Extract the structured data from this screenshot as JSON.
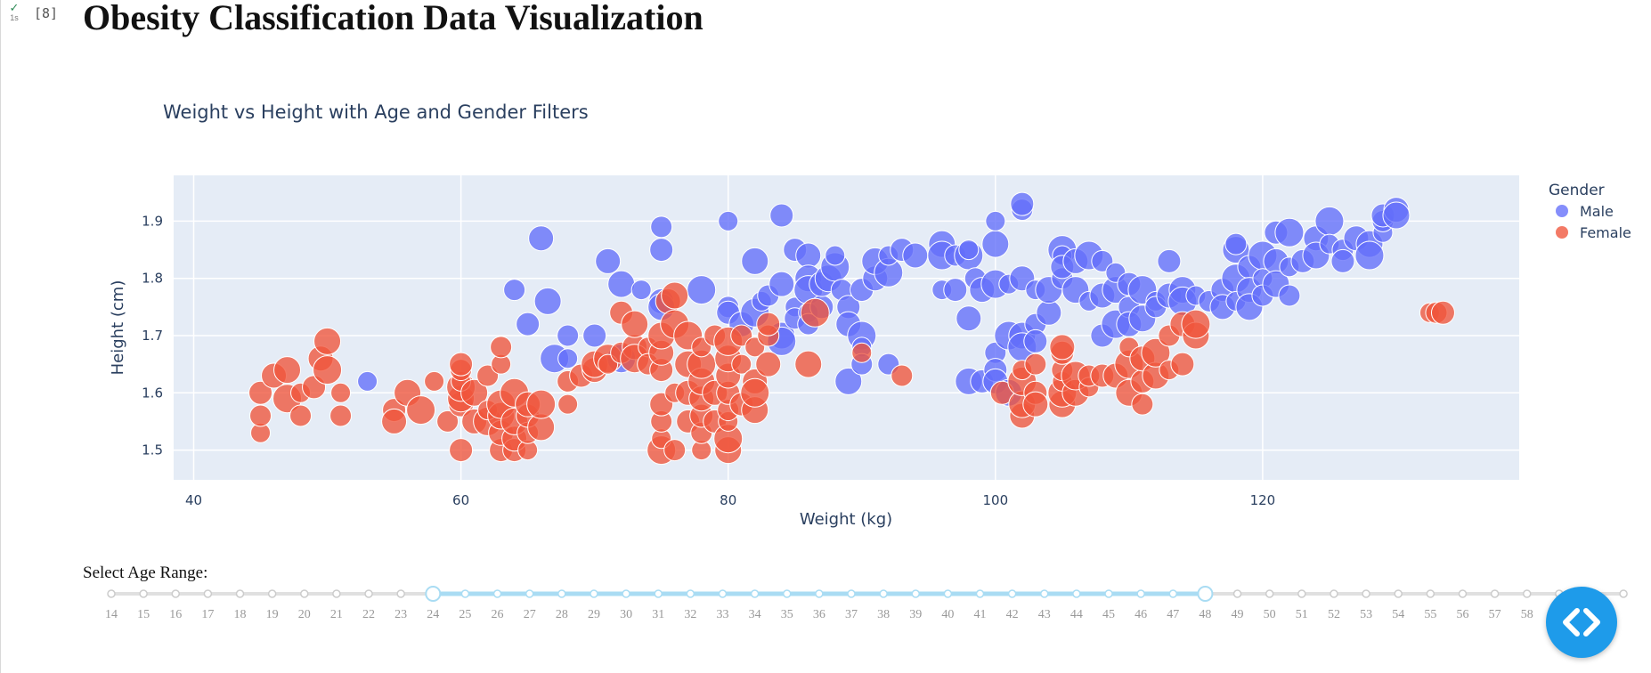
{
  "notebook": {
    "check_glyph": "✓",
    "exec_time": "1s",
    "exec_count": "[8]",
    "title": "Obesity Classification Data Visualization"
  },
  "chart_data": {
    "type": "scatter",
    "title": "Weight vs Height with Age and Gender Filters",
    "xlabel": "Weight (kg)",
    "ylabel": "Height (cm)",
    "xlim": [
      38.5,
      139.2
    ],
    "ylim": [
      1.448,
      1.98
    ],
    "x_ticks": [
      40,
      60,
      80,
      100,
      120
    ],
    "y_ticks": [
      1.5,
      1.6,
      1.7,
      1.8,
      1.9
    ],
    "grid": true,
    "legend": {
      "title": "Gender",
      "placement": "top-right"
    },
    "series": [
      {
        "name": "Male",
        "color": "#636efa",
        "points": [
          [
            53,
            1.62
          ],
          [
            64,
            1.78
          ],
          [
            65,
            1.72
          ],
          [
            66,
            1.87
          ],
          [
            66.5,
            1.76
          ],
          [
            67,
            1.66
          ],
          [
            68,
            1.66
          ],
          [
            68,
            1.7
          ],
          [
            70,
            1.7
          ],
          [
            71,
            1.83
          ],
          [
            72,
            1.79
          ],
          [
            72,
            1.66
          ],
          [
            73.5,
            1.78
          ],
          [
            75,
            1.89
          ],
          [
            75,
            1.85
          ],
          [
            75,
            1.76
          ],
          [
            75,
            1.75
          ],
          [
            78,
            1.78
          ],
          [
            80,
            1.9
          ],
          [
            80,
            1.75
          ],
          [
            80,
            1.74
          ],
          [
            81,
            1.72
          ],
          [
            82,
            1.83
          ],
          [
            82,
            1.74
          ],
          [
            82.5,
            1.76
          ],
          [
            83,
            1.77
          ],
          [
            84,
            1.91
          ],
          [
            84,
            1.79
          ],
          [
            84,
            1.7
          ],
          [
            84,
            1.69
          ],
          [
            85,
            1.75
          ],
          [
            85,
            1.73
          ],
          [
            85,
            1.85
          ],
          [
            86,
            1.84
          ],
          [
            86,
            1.8
          ],
          [
            86,
            1.78
          ],
          [
            86,
            1.74
          ],
          [
            86,
            1.72
          ],
          [
            87,
            1.75
          ],
          [
            87,
            1.79
          ],
          [
            87.5,
            1.8
          ],
          [
            88,
            1.82
          ],
          [
            88,
            1.84
          ],
          [
            88.5,
            1.78
          ],
          [
            89,
            1.75
          ],
          [
            89,
            1.72
          ],
          [
            89,
            1.62
          ],
          [
            90,
            1.7
          ],
          [
            90,
            1.68
          ],
          [
            90,
            1.65
          ],
          [
            90,
            1.78
          ],
          [
            91,
            1.8
          ],
          [
            91,
            1.83
          ],
          [
            92,
            1.81
          ],
          [
            92,
            1.84
          ],
          [
            92,
            1.65
          ],
          [
            93,
            1.85
          ],
          [
            94,
            1.84
          ],
          [
            96,
            1.86
          ],
          [
            96,
            1.84
          ],
          [
            96,
            1.78
          ],
          [
            97,
            1.84
          ],
          [
            97,
            1.78
          ],
          [
            98,
            1.73
          ],
          [
            98,
            1.62
          ],
          [
            98,
            1.84
          ],
          [
            98,
            1.85
          ],
          [
            98.5,
            1.8
          ],
          [
            99,
            1.62
          ],
          [
            99,
            1.78
          ],
          [
            100,
            1.86
          ],
          [
            100,
            1.79
          ],
          [
            100,
            1.9
          ],
          [
            100,
            1.67
          ],
          [
            100,
            1.64
          ],
          [
            100,
            1.62
          ],
          [
            101,
            1.6
          ],
          [
            101,
            1.7
          ],
          [
            101,
            1.79
          ],
          [
            102,
            1.92
          ],
          [
            102,
            1.93
          ],
          [
            102,
            1.8
          ],
          [
            102,
            1.7
          ],
          [
            102,
            1.68
          ],
          [
            103,
            1.78
          ],
          [
            103,
            1.72
          ],
          [
            103,
            1.69
          ],
          [
            104,
            1.74
          ],
          [
            104,
            1.78
          ],
          [
            105,
            1.85
          ],
          [
            105,
            1.84
          ],
          [
            105,
            1.8
          ],
          [
            105,
            1.82
          ],
          [
            106,
            1.83
          ],
          [
            106,
            1.78
          ],
          [
            107,
            1.84
          ],
          [
            107,
            1.76
          ],
          [
            108,
            1.83
          ],
          [
            108,
            1.7
          ],
          [
            108,
            1.77
          ],
          [
            109,
            1.78
          ],
          [
            109,
            1.72
          ],
          [
            109,
            1.81
          ],
          [
            110,
            1.75
          ],
          [
            110,
            1.79
          ],
          [
            110,
            1.72
          ],
          [
            111,
            1.73
          ],
          [
            111,
            1.78
          ],
          [
            112,
            1.76
          ],
          [
            112,
            1.75
          ],
          [
            113,
            1.83
          ],
          [
            113,
            1.77
          ],
          [
            114,
            1.78
          ],
          [
            114,
            1.76
          ],
          [
            115,
            1.77
          ],
          [
            116,
            1.76
          ],
          [
            117,
            1.78
          ],
          [
            117,
            1.75
          ],
          [
            118,
            1.85
          ],
          [
            118,
            1.8
          ],
          [
            118,
            1.76
          ],
          [
            118,
            1.86
          ],
          [
            119,
            1.82
          ],
          [
            119,
            1.78
          ],
          [
            119,
            1.75
          ],
          [
            120,
            1.84
          ],
          [
            120,
            1.8
          ],
          [
            120,
            1.77
          ],
          [
            121,
            1.88
          ],
          [
            121,
            1.83
          ],
          [
            121,
            1.79
          ],
          [
            122,
            1.88
          ],
          [
            122,
            1.82
          ],
          [
            122,
            1.77
          ],
          [
            123,
            1.83
          ],
          [
            124,
            1.87
          ],
          [
            124,
            1.84
          ],
          [
            125,
            1.9
          ],
          [
            125,
            1.86
          ],
          [
            126,
            1.85
          ],
          [
            126,
            1.83
          ],
          [
            127,
            1.87
          ],
          [
            128,
            1.86
          ],
          [
            128,
            1.84
          ],
          [
            129,
            1.88
          ],
          [
            129,
            1.9
          ],
          [
            129,
            1.91
          ],
          [
            130,
            1.92
          ],
          [
            130,
            1.91
          ]
        ]
      },
      {
        "name": "Female",
        "color": "#ef553b",
        "points": [
          [
            45,
            1.53
          ],
          [
            45,
            1.56
          ],
          [
            45,
            1.6
          ],
          [
            46,
            1.63
          ],
          [
            47,
            1.64
          ],
          [
            47,
            1.59
          ],
          [
            48,
            1.6
          ],
          [
            48,
            1.56
          ],
          [
            49,
            1.61
          ],
          [
            49.5,
            1.66
          ],
          [
            50,
            1.69
          ],
          [
            50,
            1.64
          ],
          [
            51,
            1.6
          ],
          [
            51,
            1.56
          ],
          [
            55,
            1.57
          ],
          [
            55,
            1.55
          ],
          [
            56,
            1.6
          ],
          [
            57,
            1.57
          ],
          [
            58,
            1.62
          ],
          [
            59,
            1.55
          ],
          [
            60,
            1.5
          ],
          [
            60,
            1.58
          ],
          [
            60,
            1.59
          ],
          [
            60,
            1.61
          ],
          [
            60,
            1.62
          ],
          [
            60,
            1.64
          ],
          [
            60,
            1.65
          ],
          [
            61,
            1.55
          ],
          [
            61,
            1.6
          ],
          [
            62,
            1.55
          ],
          [
            62,
            1.57
          ],
          [
            62,
            1.63
          ],
          [
            63,
            1.5
          ],
          [
            63,
            1.53
          ],
          [
            63,
            1.56
          ],
          [
            63,
            1.58
          ],
          [
            63,
            1.65
          ],
          [
            63,
            1.68
          ],
          [
            64,
            1.5
          ],
          [
            64,
            1.52
          ],
          [
            64,
            1.55
          ],
          [
            64,
            1.6
          ],
          [
            65,
            1.5
          ],
          [
            65,
            1.53
          ],
          [
            65,
            1.56
          ],
          [
            65,
            1.58
          ],
          [
            66,
            1.54
          ],
          [
            66,
            1.58
          ],
          [
            68,
            1.58
          ],
          [
            68,
            1.62
          ],
          [
            69,
            1.63
          ],
          [
            70,
            1.64
          ],
          [
            70,
            1.65
          ],
          [
            71,
            1.66
          ],
          [
            71,
            1.65
          ],
          [
            72,
            1.67
          ],
          [
            72,
            1.74
          ],
          [
            73,
            1.68
          ],
          [
            73,
            1.72
          ],
          [
            73,
            1.66
          ],
          [
            74,
            1.68
          ],
          [
            74,
            1.65
          ],
          [
            75,
            1.64
          ],
          [
            75,
            1.67
          ],
          [
            75,
            1.7
          ],
          [
            75,
            1.5
          ],
          [
            75,
            1.52
          ],
          [
            75,
            1.55
          ],
          [
            75,
            1.58
          ],
          [
            75.5,
            1.76
          ],
          [
            76,
            1.77
          ],
          [
            76,
            1.72
          ],
          [
            76,
            1.6
          ],
          [
            76,
            1.5
          ],
          [
            77,
            1.55
          ],
          [
            77,
            1.6
          ],
          [
            77,
            1.65
          ],
          [
            77,
            1.7
          ],
          [
            78,
            1.5
          ],
          [
            78,
            1.53
          ],
          [
            78,
            1.56
          ],
          [
            78,
            1.59
          ],
          [
            78,
            1.62
          ],
          [
            78,
            1.65
          ],
          [
            78,
            1.68
          ],
          [
            79,
            1.7
          ],
          [
            79,
            1.55
          ],
          [
            79,
            1.6
          ],
          [
            80,
            1.5
          ],
          [
            80,
            1.52
          ],
          [
            80,
            1.55
          ],
          [
            80,
            1.57
          ],
          [
            80,
            1.6
          ],
          [
            80,
            1.63
          ],
          [
            80,
            1.66
          ],
          [
            80,
            1.69
          ],
          [
            81,
            1.65
          ],
          [
            81,
            1.7
          ],
          [
            81,
            1.58
          ],
          [
            82,
            1.62
          ],
          [
            82,
            1.57
          ],
          [
            82,
            1.6
          ],
          [
            82,
            1.68
          ],
          [
            83,
            1.7
          ],
          [
            83,
            1.72
          ],
          [
            83,
            1.65
          ],
          [
            86,
            1.65
          ],
          [
            86.5,
            1.74
          ],
          [
            90,
            1.67
          ],
          [
            93,
            1.63
          ],
          [
            100.5,
            1.6
          ],
          [
            102,
            1.56
          ],
          [
            102,
            1.58
          ],
          [
            102,
            1.62
          ],
          [
            102,
            1.64
          ],
          [
            103,
            1.65
          ],
          [
            103,
            1.6
          ],
          [
            103,
            1.58
          ],
          [
            105,
            1.58
          ],
          [
            105,
            1.6
          ],
          [
            105,
            1.62
          ],
          [
            105,
            1.64
          ],
          [
            105,
            1.67
          ],
          [
            105,
            1.68
          ],
          [
            106,
            1.6
          ],
          [
            106,
            1.63
          ],
          [
            107,
            1.61
          ],
          [
            107,
            1.63
          ],
          [
            108,
            1.63
          ],
          [
            109,
            1.63
          ],
          [
            110,
            1.6
          ],
          [
            110,
            1.65
          ],
          [
            110,
            1.68
          ],
          [
            111,
            1.58
          ],
          [
            111,
            1.62
          ],
          [
            111,
            1.66
          ],
          [
            112,
            1.63
          ],
          [
            112,
            1.67
          ],
          [
            113,
            1.64
          ],
          [
            113,
            1.7
          ],
          [
            114,
            1.65
          ],
          [
            114,
            1.72
          ],
          [
            115,
            1.7
          ],
          [
            115,
            1.72
          ],
          [
            132.5,
            1.74
          ],
          [
            133,
            1.74
          ],
          [
            133.5,
            1.74
          ]
        ]
      }
    ]
  },
  "slider": {
    "label": "Select Age Range:",
    "min": 14,
    "max": 61,
    "selected": [
      24,
      48
    ],
    "visible_max_label": "58",
    "active_color": "#a9dcf3",
    "track_color": "#e0e0e0"
  },
  "fab": {
    "icon": "code-brackets-icon",
    "color": "#1e9bea"
  }
}
